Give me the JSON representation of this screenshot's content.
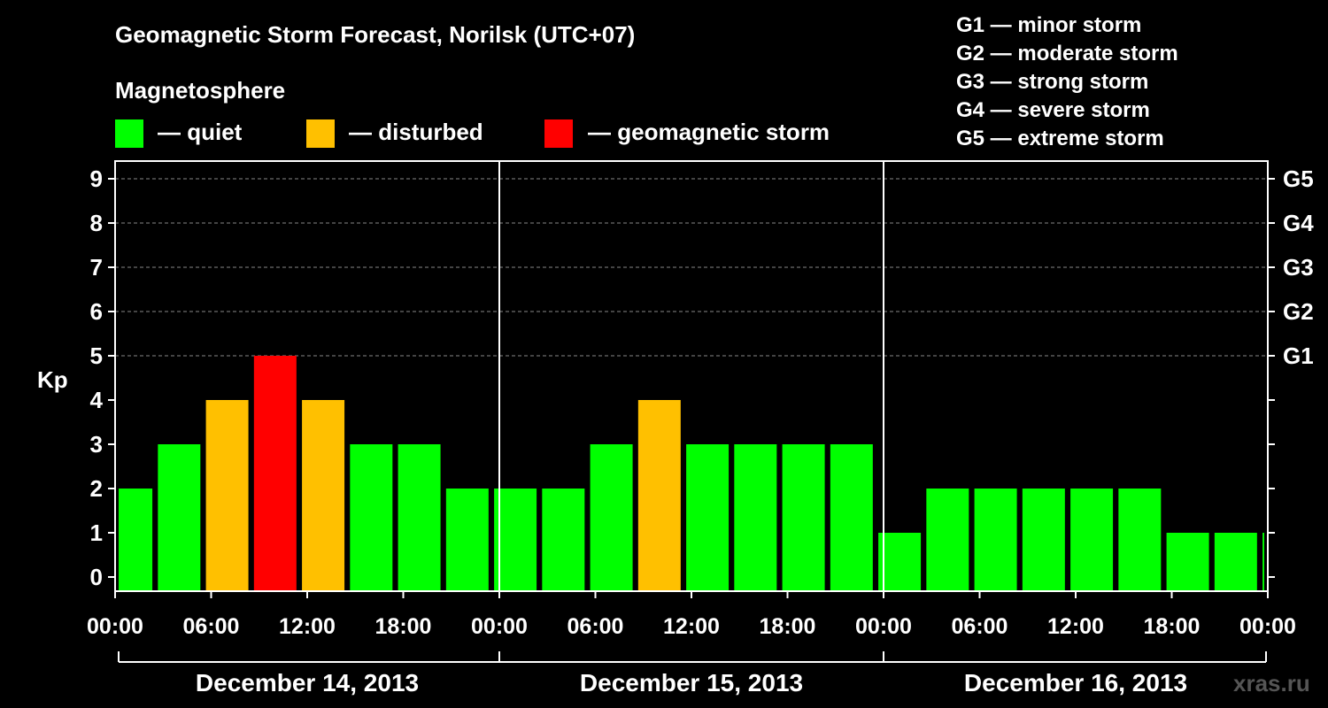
{
  "title": "Geomagnetic Storm Forecast, Norilsk (UTC+07)",
  "legend": {
    "heading": "Magnetosphere",
    "items": [
      {
        "label": "— quiet",
        "color": "#00ff00"
      },
      {
        "label": "— disturbed",
        "color": "#ffc000"
      },
      {
        "label": "— geomagnetic storm",
        "color": "#ff0000"
      }
    ]
  },
  "g_scale": [
    "G1 — minor storm",
    "G2 — moderate storm",
    "G3 — strong storm",
    "G4 — severe storm",
    "G5 — extreme storm"
  ],
  "watermark": "xras.ru",
  "chart_data": {
    "type": "bar",
    "ylabel": "Kp",
    "ylim": [
      0,
      9
    ],
    "yticks": [
      "0",
      "1",
      "2",
      "3",
      "4",
      "5",
      "6",
      "7",
      "8",
      "9"
    ],
    "right_ticks": [
      {
        "kp": 5,
        "label": "G1"
      },
      {
        "kp": 6,
        "label": "G2"
      },
      {
        "kp": 7,
        "label": "G3"
      },
      {
        "kp": 8,
        "label": "G4"
      },
      {
        "kp": 9,
        "label": "G5"
      }
    ],
    "xticks": [
      "00:00",
      "06:00",
      "12:00",
      "18:00",
      "00:00",
      "06:00",
      "12:00",
      "18:00",
      "00:00",
      "06:00",
      "12:00",
      "18:00",
      "00:00"
    ],
    "days": [
      "December 14, 2013",
      "December 15, 2013",
      "December 16, 2013"
    ],
    "interval_hours": 3,
    "start_hour": 1,
    "values": [
      2,
      3,
      4,
      5,
      4,
      3,
      3,
      2,
      2,
      2,
      3,
      4,
      3,
      3,
      3,
      3,
      1,
      2,
      2,
      2,
      2,
      2,
      1,
      1,
      1
    ],
    "colors": {
      "quiet": "#00ff00",
      "disturbed": "#ffc000",
      "storm": "#ff0000"
    },
    "grid": true
  }
}
